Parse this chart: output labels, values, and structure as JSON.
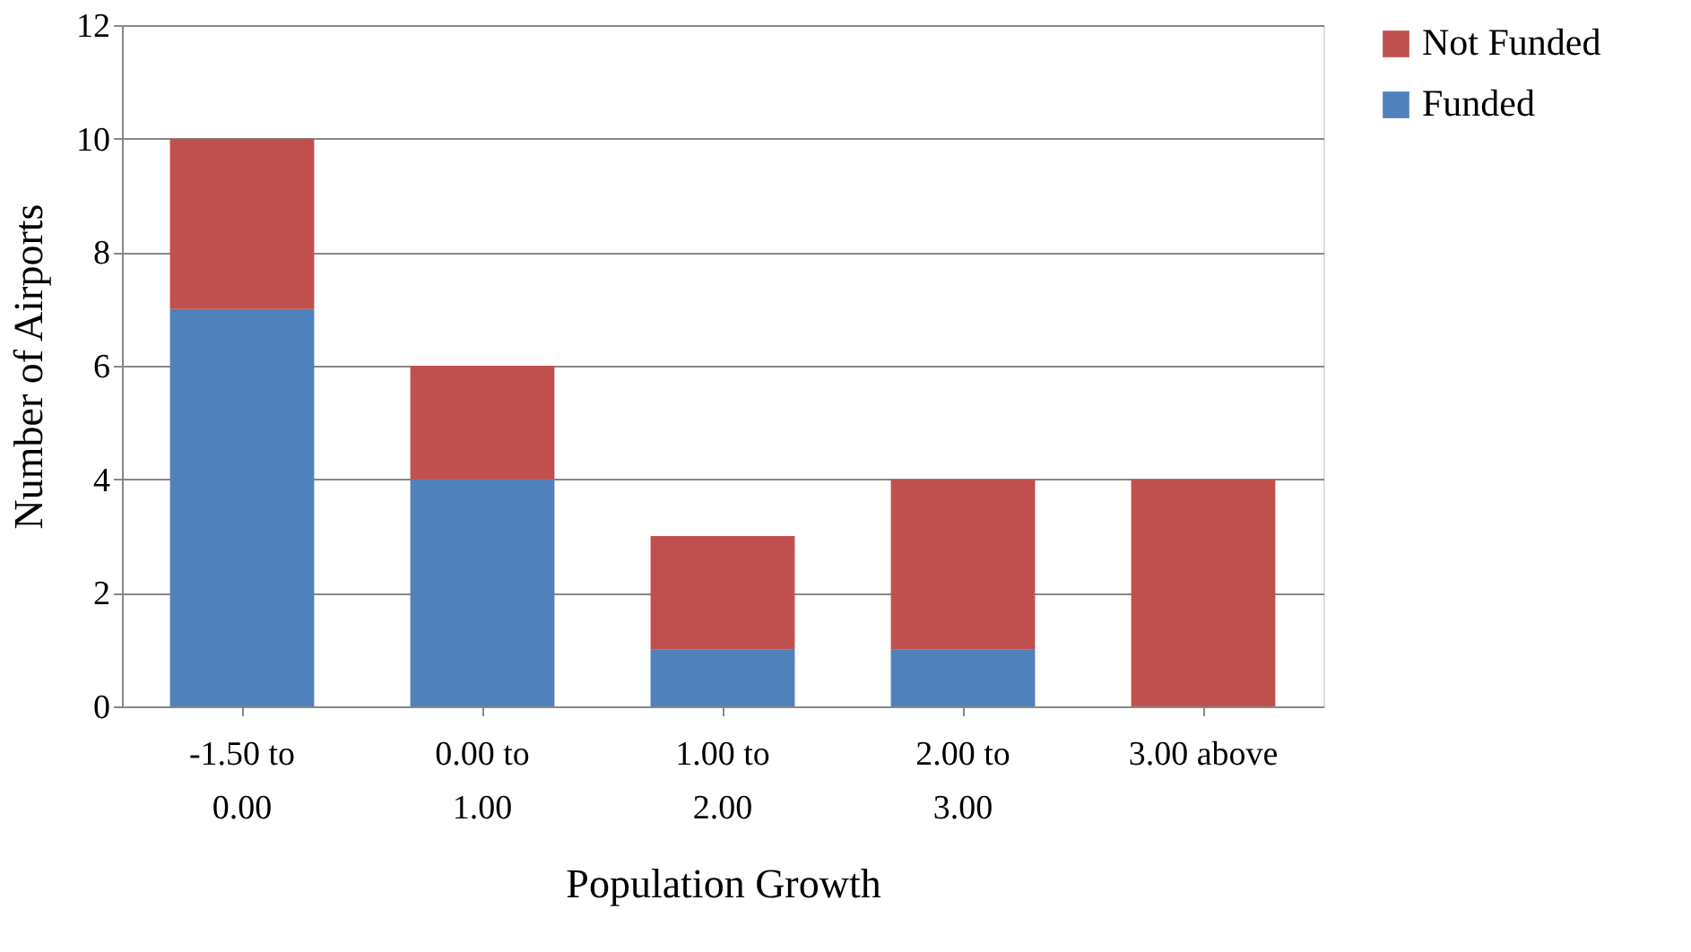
{
  "chart_data": {
    "type": "bar",
    "stacked": true,
    "xlabel": "Population Growth",
    "ylabel": "Number of Airports",
    "categories": [
      "-1.50 to 0.00",
      "0.00 to 1.00",
      "1.00 to 2.00",
      "2.00 to 3.00",
      "3.00 above"
    ],
    "series": [
      {
        "name": "Funded",
        "color": "#4f81bd",
        "values": [
          7,
          4,
          1,
          1,
          0
        ]
      },
      {
        "name": "Not Funded",
        "color": "#c0504d",
        "values": [
          3,
          2,
          2,
          3,
          4
        ]
      }
    ],
    "ylim": [
      0,
      12
    ],
    "yticks": [
      0,
      2,
      4,
      6,
      8,
      10,
      12
    ],
    "grid": "y",
    "legend": "right"
  }
}
